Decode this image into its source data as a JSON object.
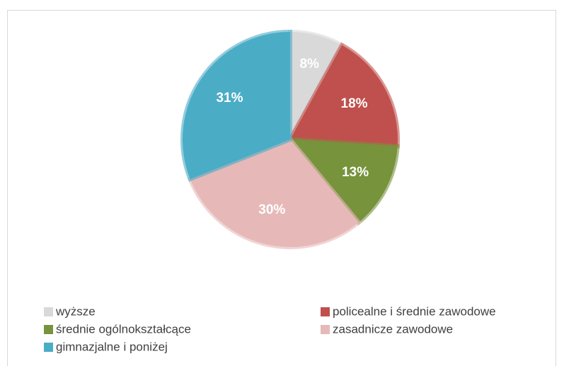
{
  "chart_data": {
    "type": "pie",
    "categories": [
      "wyższe",
      "policealne i średnie zawodowe",
      "średnie ogólnokształcące",
      "zasadnicze zawodowe",
      "gimnazjalne i poniżej"
    ],
    "values": [
      8,
      18,
      13,
      30,
      31
    ],
    "value_labels": [
      "8%",
      "18%",
      "13%",
      "30%",
      "31%"
    ],
    "colors": [
      "#d9d9d9",
      "#c0504d",
      "#77933c",
      "#e6b9b8",
      "#4bacc6"
    ],
    "legend": "bottom"
  }
}
